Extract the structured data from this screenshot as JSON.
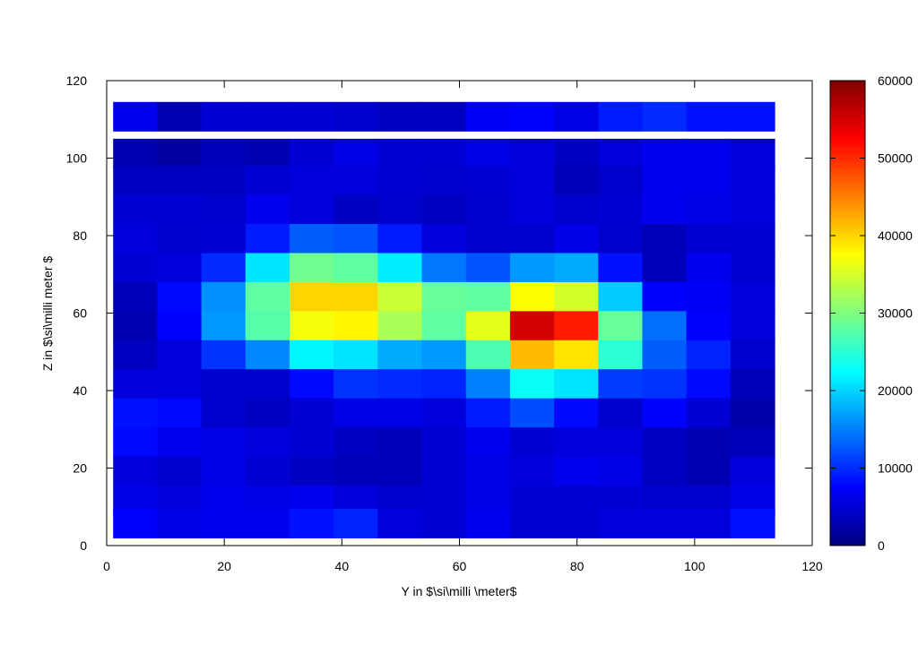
{
  "chart_data": {
    "type": "heatmap",
    "title": "",
    "xlabel": "Y in $\\si\\milli \\meter$",
    "ylabel": "Z in $\\si\\milli meter $",
    "xlim": [
      0,
      120
    ],
    "ylim": [
      0,
      120
    ],
    "x_ticks": [
      0,
      20,
      40,
      60,
      80,
      100,
      120
    ],
    "y_ticks": [
      0,
      20,
      40,
      60,
      80,
      100,
      120
    ],
    "x_centers": [
      4.85,
      12.35,
      19.85,
      27.35,
      34.85,
      42.35,
      49.85,
      57.35,
      64.85,
      72.35,
      79.85,
      87.35,
      94.85,
      102.35,
      109.85
    ],
    "y_centers": [
      110.75,
      101.25,
      94.25,
      86.75,
      79.25,
      71.75,
      64.25,
      56.75,
      49.25,
      41.75,
      34.25,
      26.75,
      19.25,
      11.75,
      5.75
    ],
    "cell_width": 7.5,
    "cell_height": 7.5,
    "values": [
      [
        6500,
        3000,
        5000,
        5000,
        5000,
        4500,
        4000,
        4000,
        7000,
        7500,
        6000,
        9000,
        10000,
        8500,
        8500
      ],
      [
        3000,
        2000,
        3500,
        3000,
        5000,
        6000,
        5000,
        5000,
        6000,
        5500,
        4000,
        5500,
        6500,
        6500,
        5500
      ],
      [
        4000,
        4000,
        4000,
        5000,
        5500,
        5500,
        5000,
        4500,
        5000,
        5500,
        3500,
        4500,
        6500,
        6500,
        5500
      ],
      [
        5000,
        5000,
        4500,
        6500,
        5500,
        4000,
        4500,
        4000,
        4500,
        5500,
        4500,
        5000,
        6500,
        6000,
        5500
      ],
      [
        5500,
        4500,
        5000,
        9000,
        13000,
        12500,
        9000,
        5500,
        4500,
        4500,
        6000,
        4500,
        3500,
        5000,
        5000
      ],
      [
        5000,
        5500,
        10000,
        21000,
        29000,
        28000,
        21500,
        14500,
        12500,
        16500,
        17500,
        8500,
        3500,
        6500,
        5000
      ],
      [
        3500,
        8000,
        16000,
        28000,
        40000,
        40000,
        34500,
        28500,
        28000,
        37500,
        35000,
        19500,
        7500,
        7000,
        5500
      ],
      [
        3000,
        7500,
        16500,
        27500,
        37000,
        38000,
        32500,
        28000,
        36000,
        55000,
        51000,
        28500,
        14000,
        7500,
        5500
      ],
      [
        4000,
        5500,
        10500,
        15500,
        22000,
        21000,
        17500,
        16500,
        27000,
        41500,
        39000,
        25000,
        13000,
        9500,
        4500
      ],
      [
        5500,
        5500,
        4500,
        4500,
        8000,
        10500,
        10000,
        9500,
        15000,
        23000,
        21000,
        11000,
        10500,
        8000,
        3500
      ],
      [
        8500,
        8000,
        4500,
        4000,
        5000,
        6000,
        6000,
        5500,
        9000,
        12000,
        8000,
        4500,
        7500,
        5000,
        2500
      ],
      [
        8000,
        6500,
        6000,
        5500,
        5000,
        4000,
        3500,
        5000,
        6500,
        5000,
        5500,
        5500,
        4000,
        3000,
        3500
      ],
      [
        5500,
        4500,
        6000,
        5000,
        4000,
        3500,
        3500,
        5000,
        6000,
        5500,
        6500,
        6000,
        4000,
        3000,
        5500
      ],
      [
        6000,
        5500,
        6500,
        6000,
        6500,
        5500,
        4500,
        5000,
        6000,
        5000,
        5000,
        5000,
        4500,
        4500,
        6000
      ],
      [
        7500,
        6000,
        6500,
        6500,
        8500,
        9500,
        5500,
        5000,
        6500,
        5000,
        5000,
        5500,
        5500,
        5500,
        8500
      ]
    ],
    "colorbar": {
      "min": 0,
      "max": 60000,
      "ticks": [
        0,
        10000,
        20000,
        30000,
        40000,
        50000,
        60000
      ],
      "colormap": "jet"
    },
    "grid": false,
    "legend": "colorbar right"
  }
}
